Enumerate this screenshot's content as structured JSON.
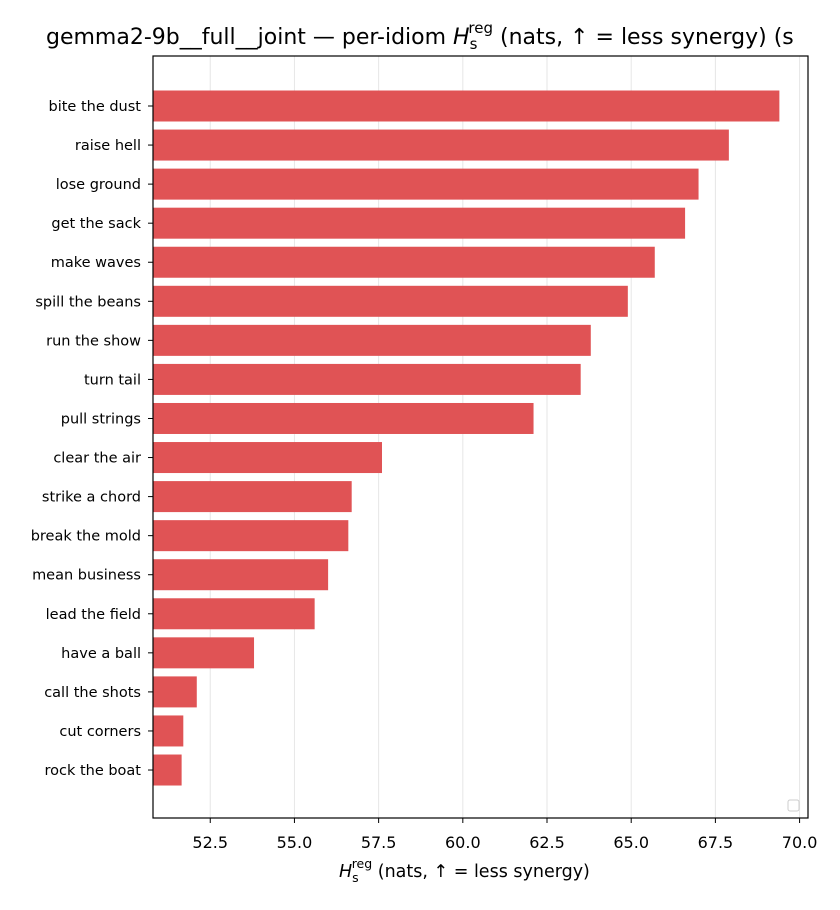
{
  "chart_data": {
    "type": "bar",
    "orientation": "horizontal",
    "title_prefix": "gemma2-9b__full__joint — per-idiom ",
    "title_symbol": "H",
    "title_sub": "s",
    "title_sup": "reg",
    "title_suffix": " (nats, ↑ = less synergy) (s",
    "xlabel_symbol": "H",
    "xlabel_sub": "s",
    "xlabel_sup": "reg",
    "xlabel_suffix": " (nats, ↑ = less synergy)",
    "ylabel": "",
    "categories": [
      "bite the dust",
      "raise hell",
      "lose ground",
      "get the sack",
      "make waves",
      "spill the beans",
      "run the show",
      "turn tail",
      "pull strings",
      "clear the air",
      "strike a chord",
      "break the mold",
      "mean business",
      "lead the field",
      "have a ball",
      "call the shots",
      "cut corners",
      "rock the boat"
    ],
    "values": [
      69.4,
      67.9,
      67.0,
      66.6,
      65.7,
      64.9,
      63.8,
      63.5,
      62.1,
      57.6,
      56.7,
      56.6,
      56.0,
      55.6,
      53.8,
      52.1,
      51.7,
      51.65
    ],
    "xlim": [
      50.8,
      70.25
    ],
    "xticks": [
      "52.5",
      "55.0",
      "57.5",
      "60.0",
      "62.5",
      "65.0",
      "67.5",
      "70.0"
    ],
    "bar_color": "#e05355",
    "grid": "x",
    "legend": "empty, lower right"
  }
}
